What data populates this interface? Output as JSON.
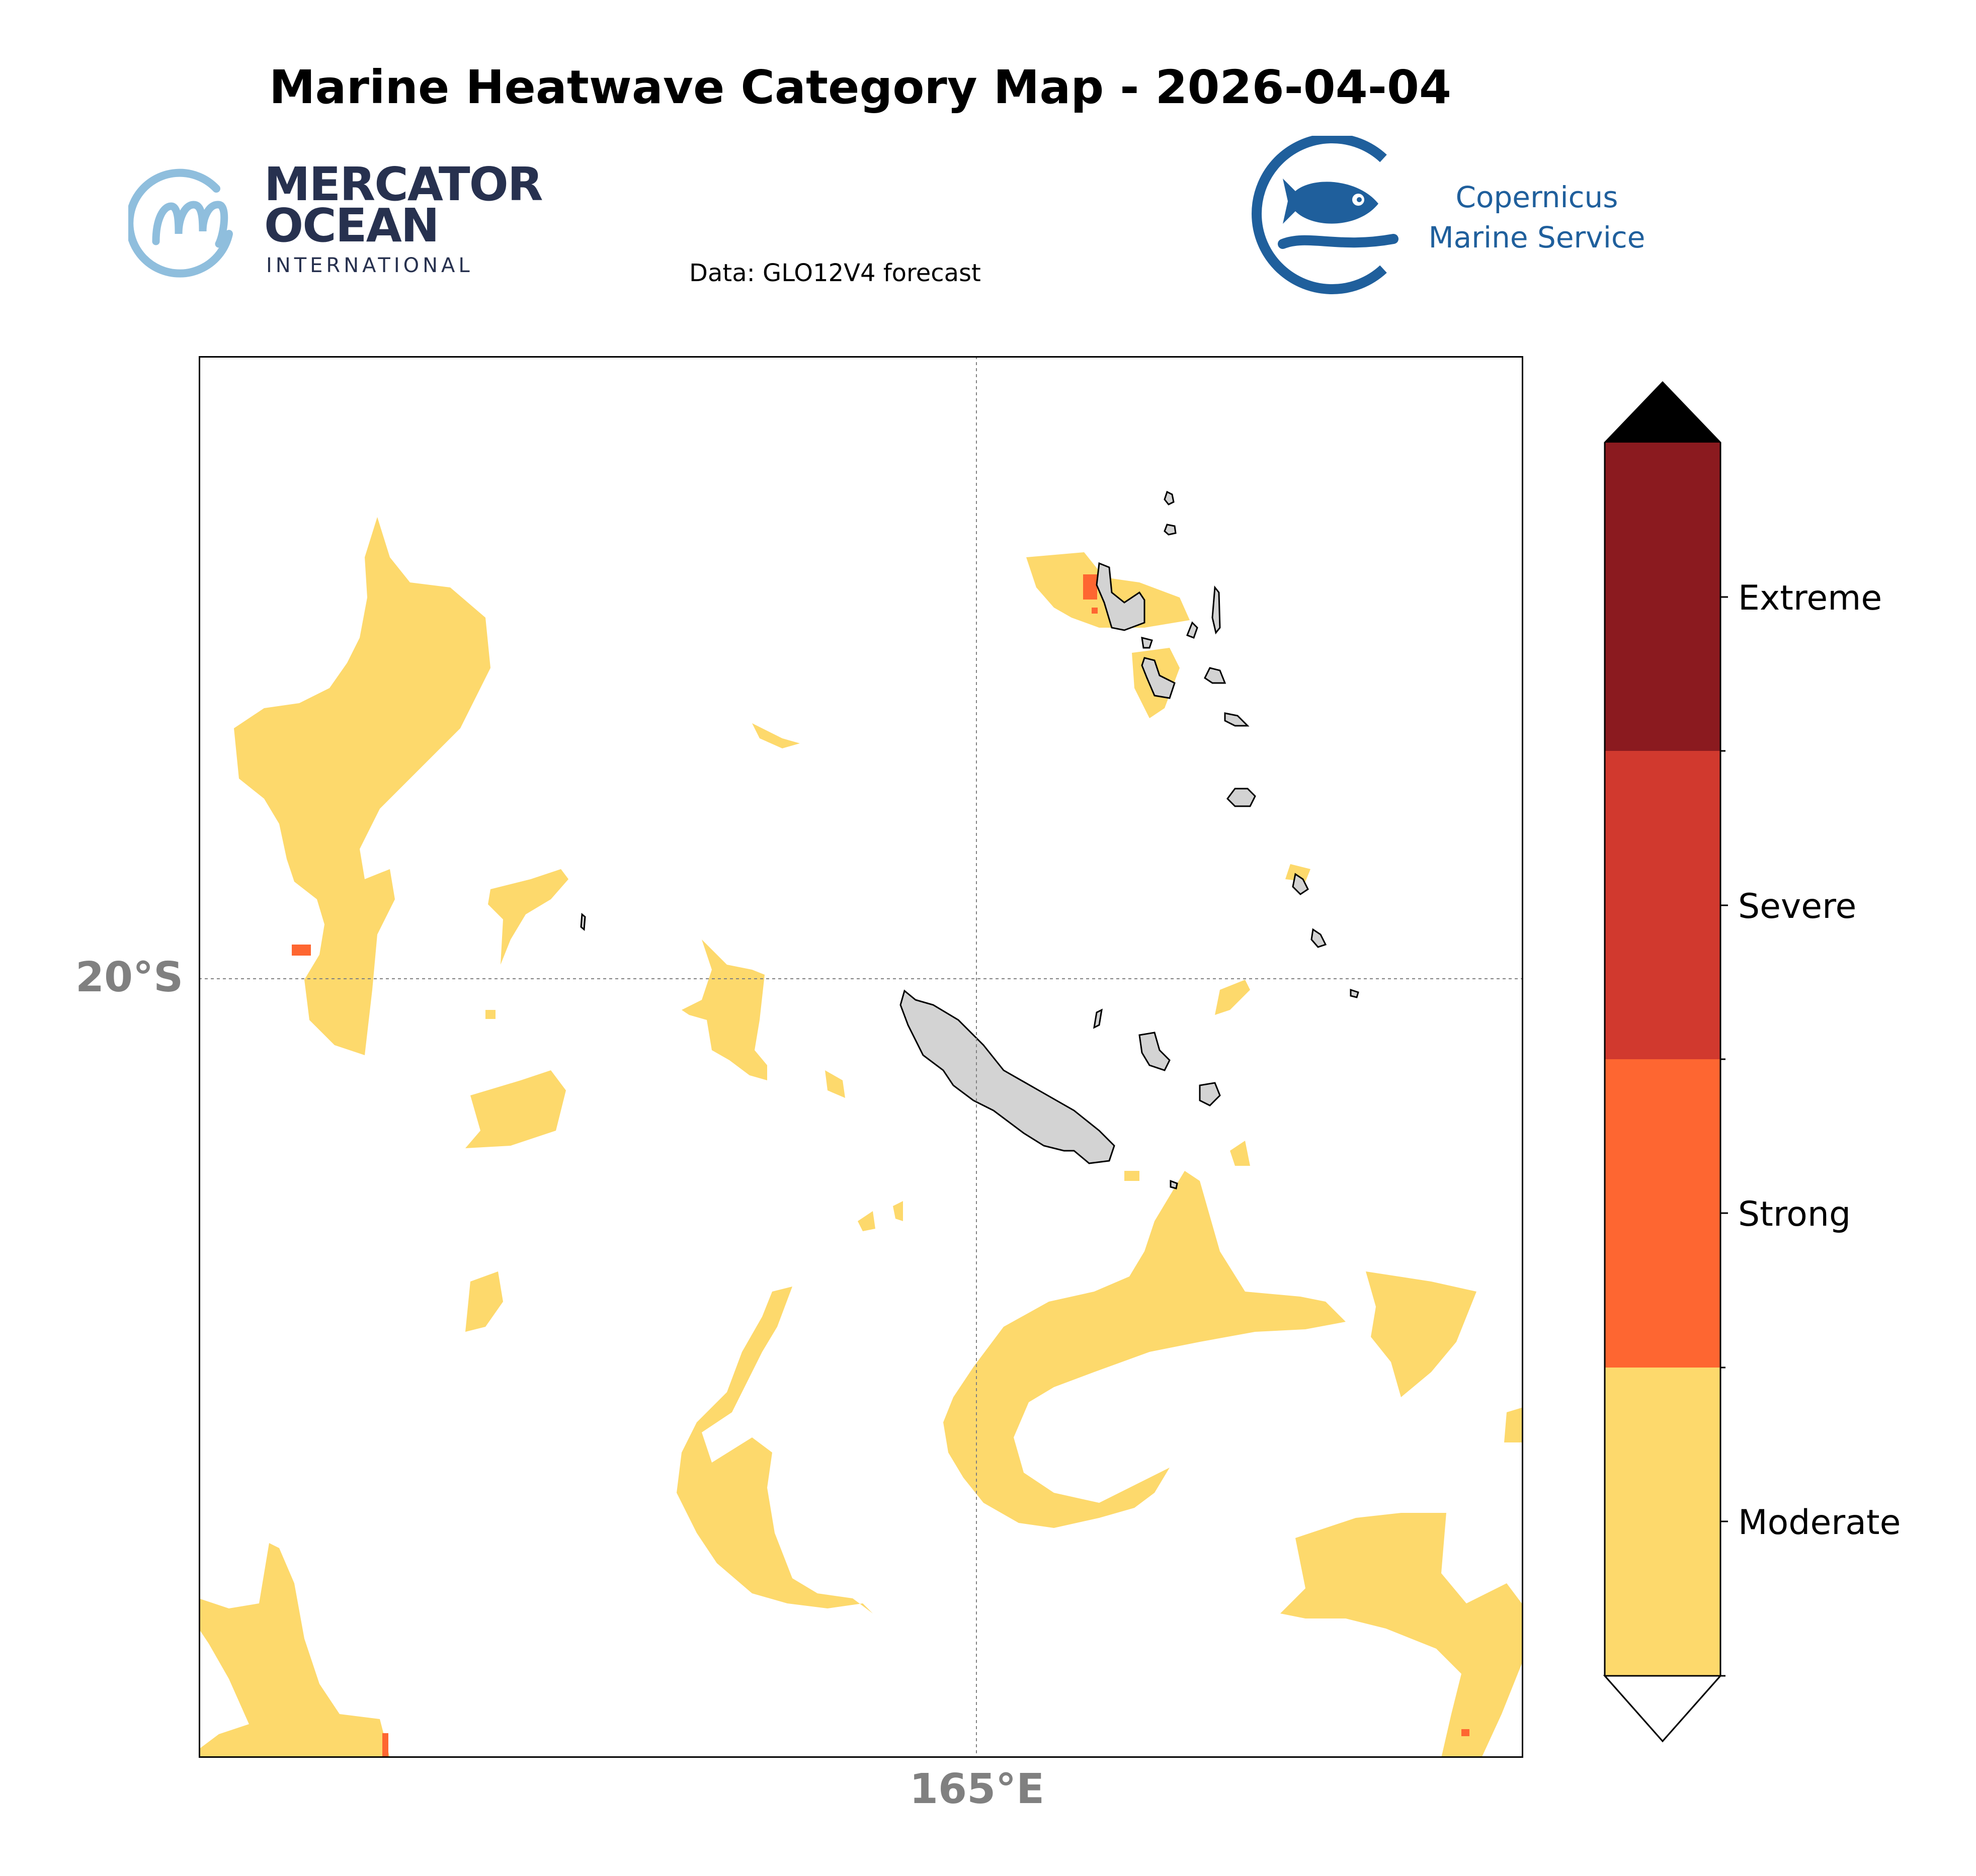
{
  "title": "Marine Heatwave Category Map - 2026-04-04",
  "subtitle": "Data: GLO12V4 forecast",
  "logos": {
    "mercator": {
      "line1": "MERCATOR",
      "line2": "OCEAN",
      "line3": "INTERNATIONAL",
      "icon": "mercator-m-swirl-icon"
    },
    "copernicus": {
      "line1": "Copernicus",
      "line2": "Marine Service",
      "icon": "fish-wave-icon"
    }
  },
  "map": {
    "lat_gridline_label": "20°S",
    "lon_gridline_label": "165°E",
    "region": "New Caledonia / Vanuatu, Southwest Pacific",
    "land_color": "#d3d3d3",
    "ocean_color": "#ffffff"
  },
  "legend": {
    "categories": [
      {
        "label": "Extreme",
        "color": "#8b1a1f"
      },
      {
        "label": "Severe",
        "color": "#d1392e"
      },
      {
        "label": "Strong",
        "color": "#fe6631"
      },
      {
        "label": "Moderate",
        "color": "#fdd96c"
      }
    ],
    "over_color": "#000000",
    "under_color": "#ffffff"
  }
}
